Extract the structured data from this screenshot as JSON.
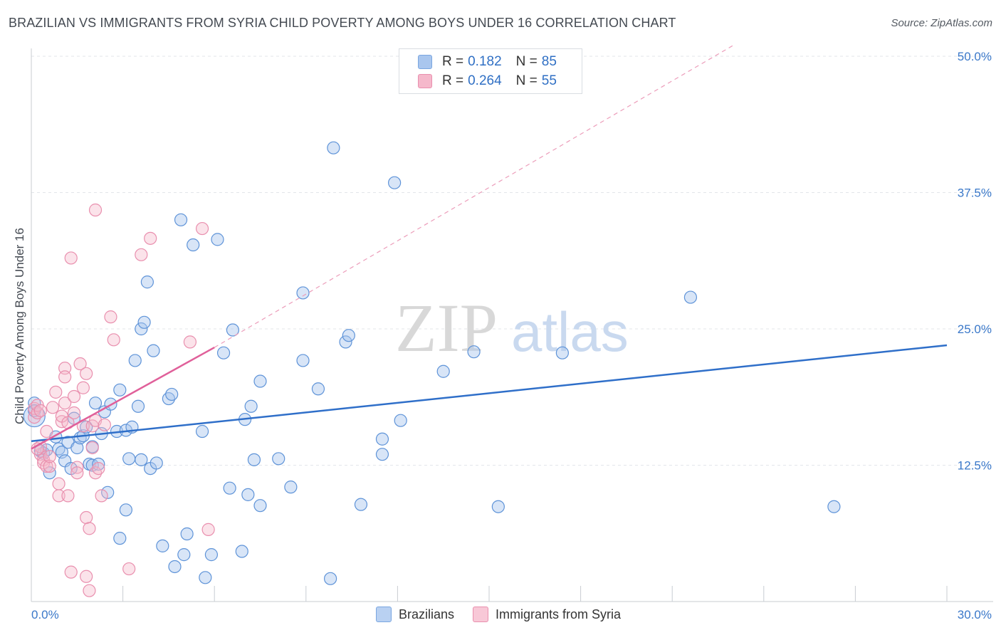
{
  "title": "BRAZILIAN VS IMMIGRANTS FROM SYRIA CHILD POVERTY AMONG BOYS UNDER 16 CORRELATION CHART",
  "source": "Source: ZipAtlas.com",
  "watermark": {
    "zip": "ZIP",
    "atlas": "atlas"
  },
  "legend": {
    "rows": [
      {
        "r_label": "R =",
        "r_value": "0.182",
        "n_label": "N =",
        "n_value": "85",
        "color": "#a9c6ee"
      },
      {
        "r_label": "R =",
        "r_value": "0.264",
        "n_label": "N =",
        "n_value": "55",
        "color": "#f5b8cb"
      }
    ]
  },
  "bottom_legend": [
    "Brazilians",
    "Immigrants from Syria"
  ],
  "chart_data": {
    "type": "scatter",
    "title": "BRAZILIAN VS IMMIGRANTS FROM SYRIA CHILD POVERTY AMONG BOYS UNDER 16 CORRELATION CHART",
    "xlabel": "",
    "ylabel": "Child Poverty Among Boys Under 16",
    "xlim": [
      0,
      30
    ],
    "ylim": [
      0,
      50
    ],
    "x_tick_labels": [
      "0.0%",
      "30.0%"
    ],
    "y_ticks": [
      12.5,
      25.0,
      37.5,
      50.0
    ],
    "y_tick_labels": [
      "12.5%",
      "25.0%",
      "37.5%",
      "50.0%"
    ],
    "grid": true,
    "legend_position": "top-center",
    "colors": {
      "Brazilians": "#4a86d4",
      "Immigrants from Syria": "#e77aa0"
    },
    "series": [
      {
        "name": "Brazilians",
        "color": "#4a86d4",
        "trend": {
          "x": [
            0,
            30
          ],
          "y": [
            14.7,
            23.5
          ]
        },
        "points": [
          [
            0.1,
            17.0
          ],
          [
            0.1,
            18.2
          ],
          [
            0.3,
            13.8
          ],
          [
            0.4,
            13.6
          ],
          [
            0.5,
            13.9
          ],
          [
            0.6,
            11.8
          ],
          [
            0.8,
            15.1
          ],
          [
            0.9,
            14.0
          ],
          [
            1.0,
            13.7
          ],
          [
            1.1,
            12.9
          ],
          [
            1.2,
            14.6
          ],
          [
            1.3,
            12.2
          ],
          [
            1.4,
            16.8
          ],
          [
            1.5,
            14.1
          ],
          [
            1.6,
            15.0
          ],
          [
            1.7,
            15.2
          ],
          [
            1.8,
            16.0
          ],
          [
            1.9,
            12.6
          ],
          [
            2.0,
            12.5
          ],
          [
            2.1,
            18.2
          ],
          [
            2.2,
            12.6
          ],
          [
            2.3,
            15.4
          ],
          [
            2.4,
            17.4
          ],
          [
            2.5,
            10.0
          ],
          [
            2.6,
            18.1
          ],
          [
            2.8,
            15.6
          ],
          [
            2.9,
            5.8
          ],
          [
            2.9,
            19.4
          ],
          [
            3.1,
            15.7
          ],
          [
            3.1,
            8.4
          ],
          [
            3.2,
            13.1
          ],
          [
            3.3,
            16.0
          ],
          [
            3.4,
            22.1
          ],
          [
            3.5,
            17.9
          ],
          [
            3.6,
            13.0
          ],
          [
            3.6,
            25.0
          ],
          [
            3.7,
            25.6
          ],
          [
            3.8,
            29.3
          ],
          [
            3.9,
            12.2
          ],
          [
            4.0,
            23.0
          ],
          [
            4.1,
            12.7
          ],
          [
            4.3,
            5.1
          ],
          [
            4.5,
            18.6
          ],
          [
            4.6,
            19.0
          ],
          [
            4.7,
            3.2
          ],
          [
            4.9,
            35.0
          ],
          [
            5.0,
            4.3
          ],
          [
            5.1,
            6.2
          ],
          [
            5.3,
            32.7
          ],
          [
            5.6,
            15.6
          ],
          [
            5.7,
            2.2
          ],
          [
            5.9,
            4.3
          ],
          [
            6.1,
            33.2
          ],
          [
            6.3,
            22.8
          ],
          [
            6.5,
            10.4
          ],
          [
            6.6,
            24.9
          ],
          [
            6.9,
            4.6
          ],
          [
            7.0,
            16.7
          ],
          [
            7.1,
            9.8
          ],
          [
            7.2,
            17.9
          ],
          [
            7.3,
            13.0
          ],
          [
            7.5,
            8.8
          ],
          [
            7.5,
            20.2
          ],
          [
            8.1,
            13.1
          ],
          [
            8.5,
            10.5
          ],
          [
            8.9,
            28.3
          ],
          [
            8.9,
            22.1
          ],
          [
            9.4,
            19.5
          ],
          [
            9.8,
            2.1
          ],
          [
            9.9,
            41.6
          ],
          [
            10.3,
            23.8
          ],
          [
            10.4,
            24.4
          ],
          [
            10.8,
            8.9
          ],
          [
            11.5,
            13.5
          ],
          [
            11.5,
            14.9
          ],
          [
            11.9,
            38.4
          ],
          [
            12.1,
            16.6
          ],
          [
            13.5,
            21.1
          ],
          [
            14.5,
            22.9
          ],
          [
            15.3,
            8.7
          ],
          [
            17.4,
            22.8
          ],
          [
            21.6,
            27.9
          ],
          [
            26.3,
            8.7
          ],
          [
            0.1,
            17.5
          ],
          [
            2.0,
            14.2
          ]
        ]
      },
      {
        "name": "Immigrants from Syria",
        "color": "#e77aa0",
        "trend": {
          "x": [
            0,
            6.0
          ],
          "y": [
            14.0,
            23.3
          ]
        },
        "trend_dashed": {
          "x": [
            6.0,
            23.0
          ],
          "y": [
            23.3,
            51.0
          ]
        },
        "points": [
          [
            0.1,
            16.9
          ],
          [
            0.1,
            17.7
          ],
          [
            0.2,
            17.3
          ],
          [
            0.2,
            18.0
          ],
          [
            0.3,
            13.5
          ],
          [
            0.3,
            14.2
          ],
          [
            0.4,
            13.0
          ],
          [
            0.4,
            12.7
          ],
          [
            0.5,
            12.4
          ],
          [
            0.5,
            15.6
          ],
          [
            0.6,
            12.4
          ],
          [
            0.6,
            13.3
          ],
          [
            0.7,
            17.8
          ],
          [
            0.8,
            19.2
          ],
          [
            0.9,
            9.7
          ],
          [
            0.9,
            10.8
          ],
          [
            1.0,
            16.5
          ],
          [
            1.0,
            17.0
          ],
          [
            1.1,
            18.2
          ],
          [
            1.1,
            21.4
          ],
          [
            1.1,
            20.6
          ],
          [
            1.2,
            9.7
          ],
          [
            1.2,
            16.4
          ],
          [
            1.3,
            31.5
          ],
          [
            1.3,
            2.7
          ],
          [
            1.4,
            17.3
          ],
          [
            1.4,
            18.8
          ],
          [
            1.5,
            12.3
          ],
          [
            1.5,
            11.8
          ],
          [
            1.6,
            21.8
          ],
          [
            1.7,
            16.1
          ],
          [
            1.7,
            19.6
          ],
          [
            1.8,
            20.9
          ],
          [
            1.8,
            7.7
          ],
          [
            1.8,
            2.3
          ],
          [
            1.9,
            1.0
          ],
          [
            1.9,
            6.7
          ],
          [
            2.0,
            14.1
          ],
          [
            2.0,
            16.1
          ],
          [
            2.1,
            16.6
          ],
          [
            2.1,
            11.8
          ],
          [
            2.1,
            35.9
          ],
          [
            2.2,
            12.2
          ],
          [
            2.3,
            9.7
          ],
          [
            2.4,
            16.2
          ],
          [
            2.6,
            26.1
          ],
          [
            2.7,
            24.0
          ],
          [
            3.2,
            3.0
          ],
          [
            3.6,
            31.8
          ],
          [
            3.9,
            33.3
          ],
          [
            5.2,
            23.8
          ],
          [
            5.6,
            34.2
          ],
          [
            5.8,
            6.6
          ],
          [
            0.2,
            14.0
          ],
          [
            0.3,
            17.5
          ]
        ]
      }
    ]
  }
}
